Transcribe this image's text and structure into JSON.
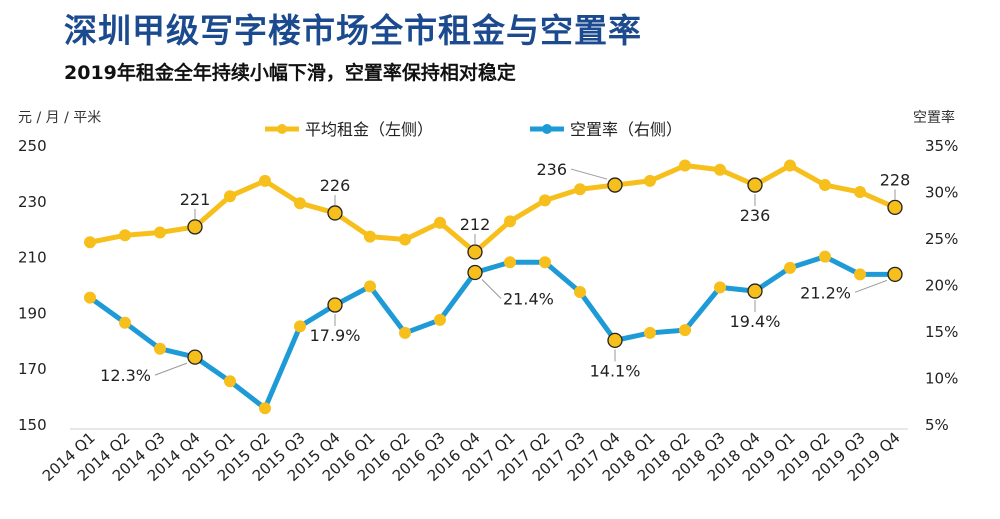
{
  "header": {
    "title": "深圳甲级写字楼市场全市租金与空置率",
    "subtitle": "2019年租金全年持续小幅下滑，空置率保持相对稳定"
  },
  "chart_data": {
    "type": "line",
    "left_unit": "元 / 月 / 平米",
    "right_unit": "空置率",
    "categories": [
      "2014 Q1",
      "2014 Q2",
      "2014 Q3",
      "2014 Q4",
      "2015 Q1",
      "2015 Q2",
      "2015 Q3",
      "2015 Q4",
      "2016 Q1",
      "2016 Q2",
      "2016 Q3",
      "2016 Q4",
      "2017 Q1",
      "2017 Q2",
      "2017 Q3",
      "2017 Q4",
      "2018 Q1",
      "2018 Q2",
      "2018 Q3",
      "2018 Q4",
      "2019 Q1",
      "2019 Q2",
      "2019 Q3",
      "2019 Q4"
    ],
    "left_axis": {
      "ylim": [
        150,
        250
      ],
      "ticks": [
        "150",
        "170",
        "190",
        "210",
        "230",
        "250"
      ]
    },
    "right_axis": {
      "ylim": [
        5,
        35
      ],
      "ticks": [
        "5%",
        "10%",
        "15%",
        "20%",
        "25%",
        "30%",
        "35%"
      ]
    },
    "grid": false,
    "legend_position": "top-center",
    "series": [
      {
        "name": "平均租金（左侧）",
        "axis": "left",
        "color": "#f7bf1c",
        "values": [
          215.5,
          218,
          219,
          221,
          232,
          237.5,
          229.5,
          226,
          217.5,
          216.5,
          222.5,
          212,
          223,
          230.5,
          234.5,
          236,
          237.5,
          243,
          241.5,
          236,
          243,
          236,
          233.5,
          228
        ],
        "labels": [
          {
            "index": 3,
            "text": "221",
            "pos": "above"
          },
          {
            "index": 7,
            "text": "226",
            "pos": "above"
          },
          {
            "index": 11,
            "text": "212",
            "pos": "above"
          },
          {
            "index": 15,
            "text": "236",
            "pos": "upper-left"
          },
          {
            "index": 19,
            "text": "236",
            "pos": "below"
          },
          {
            "index": 23,
            "text": "228",
            "pos": "above"
          }
        ]
      },
      {
        "name": "空置率（右侧）",
        "axis": "right",
        "color": "#1e9bd7",
        "values": [
          18.7,
          16,
          13.2,
          12.3,
          9.7,
          6.8,
          15.6,
          17.9,
          19.9,
          14.9,
          16.3,
          21.4,
          22.5,
          22.5,
          19.3,
          14.1,
          14.9,
          15.2,
          19.8,
          19.4,
          21.9,
          23.1,
          21.2,
          21.2
        ],
        "labels": [
          {
            "index": 3,
            "text": "12.3%",
            "pos": "lower-left"
          },
          {
            "index": 7,
            "text": "17.9%",
            "pos": "below"
          },
          {
            "index": 11,
            "text": "21.4%",
            "pos": "lower-right"
          },
          {
            "index": 15,
            "text": "14.1%",
            "pos": "below"
          },
          {
            "index": 19,
            "text": "19.4%",
            "pos": "below"
          },
          {
            "index": 23,
            "text": "21.2%",
            "pos": "lower-left"
          }
        ]
      }
    ]
  }
}
